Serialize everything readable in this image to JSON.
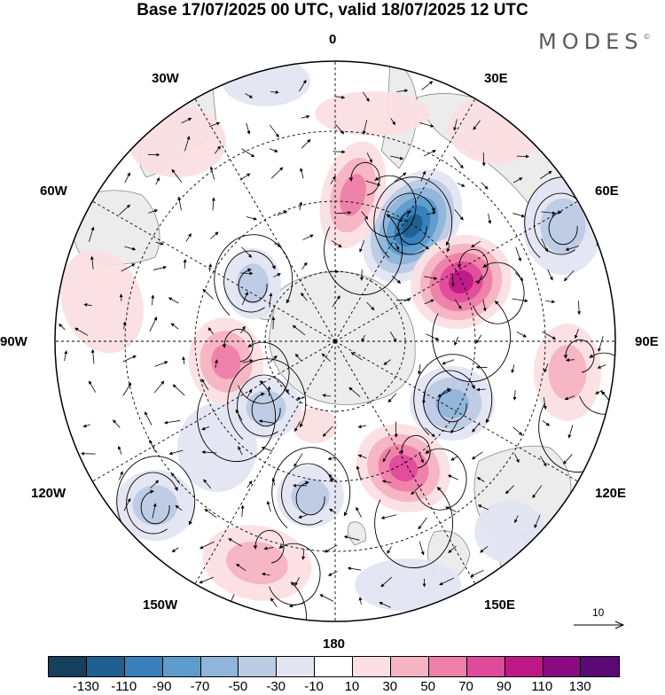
{
  "header": {
    "title": "Base 17/07/2025 00 UTC, valid 18/07/2025 12 UTC"
  },
  "logo": {
    "text": "MODES",
    "mark": "©"
  },
  "map": {
    "projection": "south-polar-stereographic",
    "labels": {
      "lon_0": "0",
      "lon_30E": "30E",
      "lon_60E": "60E",
      "lon_90E": "90E",
      "lon_120E": "120E",
      "lon_150E": "150E",
      "lon_180": "180",
      "lon_150W": "150W",
      "lon_120W": "120W",
      "lon_90W": "90W",
      "lon_60W": "60W",
      "lon_30W": "30W"
    },
    "land_color": "#ececec",
    "coast_color": "#888888"
  },
  "reference_vector": {
    "label": "10"
  },
  "colorbar": {
    "colors": [
      "#14405e",
      "#1f5f91",
      "#3780bb",
      "#5d9ccc",
      "#8fb5da",
      "#bccbe4",
      "#e4e5f2",
      "#ffffff",
      "#fbdfe2",
      "#f6b3c1",
      "#ee7fa9",
      "#e04a9b",
      "#be1887",
      "#8a0b7f",
      "#5a0a74"
    ],
    "tick_labels": [
      "-130",
      "-110",
      "-90",
      "-70",
      "-50",
      "-30",
      "-10",
      "10",
      "30",
      "50",
      "70",
      "90",
      "110",
      "130"
    ]
  }
}
